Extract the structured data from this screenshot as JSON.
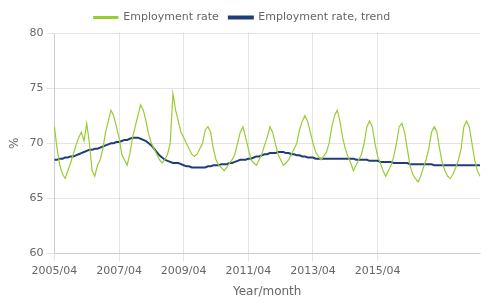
{
  "chart_data": {
    "type": "line",
    "xlabel": "Year/month",
    "ylabel": "%",
    "ylim": [
      60,
      80
    ],
    "yticks": [
      60,
      65,
      70,
      75,
      80
    ],
    "grid": true,
    "legend": "top",
    "categories": [
      "2005/04",
      null,
      null,
      null,
      null,
      null,
      null,
      null,
      null,
      null,
      null,
      null,
      null,
      null,
      null,
      null,
      null,
      null,
      null,
      null,
      null,
      null,
      null,
      null,
      "2007/04",
      null,
      null,
      null,
      null,
      null,
      null,
      null,
      null,
      null,
      null,
      null,
      null,
      null,
      null,
      null,
      null,
      null,
      null,
      null,
      null,
      null,
      null,
      null,
      "2009/04",
      null,
      null,
      null,
      null,
      null,
      null,
      null,
      null,
      null,
      null,
      null,
      null,
      null,
      null,
      null,
      null,
      null,
      null,
      null,
      null,
      null,
      null,
      null,
      "2011/04",
      null,
      null,
      null,
      null,
      null,
      null,
      null,
      null,
      null,
      null,
      null,
      null,
      null,
      null,
      null,
      null,
      null,
      null,
      null,
      null,
      null,
      null,
      null,
      "2013/04",
      null,
      null,
      null,
      null,
      null,
      null,
      null,
      null,
      null,
      null,
      null,
      null,
      null,
      null,
      null,
      null,
      null,
      null,
      null,
      null,
      null,
      null,
      null,
      "2015/04",
      null,
      null,
      null,
      null,
      null,
      null,
      null,
      null,
      null,
      null,
      null,
      null,
      null,
      null,
      null,
      null,
      null,
      null,
      null,
      null,
      null,
      null,
      null,
      null,
      null,
      null,
      null,
      null,
      null,
      null,
      null,
      null,
      null,
      null,
      null,
      null,
      null,
      null
    ],
    "series": [
      {
        "name": "Employment rate",
        "color": "#99cc33",
        "values": [
          71.5,
          69.5,
          68.0,
          67.2,
          66.8,
          67.5,
          68.2,
          69.0,
          69.8,
          70.5,
          71.0,
          70.2,
          71.8,
          70.0,
          67.5,
          67.0,
          68.0,
          68.5,
          69.5,
          71.0,
          72.0,
          73.0,
          72.5,
          71.5,
          70.5,
          69.0,
          68.5,
          68.0,
          69.0,
          70.5,
          71.5,
          72.5,
          73.5,
          73.0,
          72.0,
          70.8,
          70.0,
          69.5,
          69.0,
          68.5,
          68.2,
          68.5,
          69.0,
          70.0,
          74.5,
          73.0,
          72.0,
          71.0,
          70.5,
          70.0,
          69.5,
          69.0,
          68.8,
          69.0,
          69.5,
          70.0,
          71.2,
          71.5,
          71.0,
          69.5,
          68.5,
          68.0,
          67.8,
          67.5,
          67.8,
          68.2,
          68.5,
          69.0,
          70.0,
          71.0,
          71.5,
          70.5,
          69.5,
          68.5,
          68.2,
          68.0,
          68.5,
          69.0,
          69.8,
          70.5,
          71.5,
          71.0,
          70.0,
          69.0,
          68.5,
          68.0,
          68.2,
          68.5,
          69.0,
          69.5,
          70.0,
          71.2,
          72.0,
          72.5,
          72.0,
          71.0,
          70.0,
          69.2,
          68.8,
          68.5,
          68.8,
          69.2,
          70.0,
          71.5,
          72.5,
          73.0,
          72.0,
          70.5,
          69.5,
          68.8,
          68.2,
          67.5,
          68.0,
          68.5,
          69.0,
          70.0,
          71.5,
          72.0,
          71.5,
          70.0,
          68.8,
          68.2,
          67.5,
          67.0,
          67.5,
          68.0,
          68.8,
          70.0,
          71.5,
          71.8,
          71.0,
          69.5,
          68.0,
          67.2,
          66.8,
          66.5,
          67.0,
          67.8,
          68.5,
          69.5,
          71.0,
          71.5,
          71.0,
          69.5,
          68.2,
          67.5,
          67.0,
          66.8,
          67.2,
          67.8,
          68.5,
          69.5,
          71.5,
          72.0,
          71.5,
          70.0,
          68.5,
          67.5,
          67.0
        ]
      },
      {
        "name": "Employment rate, trend",
        "color": "#1f3d7a",
        "values": [
          68.5,
          68.5,
          68.6,
          68.6,
          68.7,
          68.7,
          68.8,
          68.8,
          68.9,
          69.0,
          69.1,
          69.2,
          69.3,
          69.4,
          69.4,
          69.5,
          69.5,
          69.6,
          69.7,
          69.8,
          69.9,
          70.0,
          70.0,
          70.1,
          70.1,
          70.2,
          70.3,
          70.3,
          70.4,
          70.5,
          70.5,
          70.5,
          70.4,
          70.3,
          70.2,
          70.0,
          69.8,
          69.5,
          69.2,
          68.9,
          68.7,
          68.5,
          68.4,
          68.3,
          68.2,
          68.2,
          68.2,
          68.1,
          68.0,
          67.9,
          67.9,
          67.8,
          67.8,
          67.8,
          67.8,
          67.8,
          67.8,
          67.9,
          67.9,
          68.0,
          68.0,
          68.0,
          68.1,
          68.1,
          68.1,
          68.2,
          68.2,
          68.3,
          68.4,
          68.5,
          68.5,
          68.5,
          68.6,
          68.6,
          68.7,
          68.8,
          68.8,
          68.9,
          69.0,
          69.0,
          69.1,
          69.1,
          69.1,
          69.2,
          69.2,
          69.2,
          69.1,
          69.1,
          69.0,
          69.0,
          68.9,
          68.9,
          68.8,
          68.8,
          68.7,
          68.7,
          68.7,
          68.6,
          68.6,
          68.6,
          68.6,
          68.6,
          68.6,
          68.6,
          68.6,
          68.6,
          68.6,
          68.6,
          68.6,
          68.6,
          68.6,
          68.6,
          68.5,
          68.5,
          68.5,
          68.5,
          68.5,
          68.4,
          68.4,
          68.4,
          68.4,
          68.3,
          68.3,
          68.3,
          68.3,
          68.3,
          68.2,
          68.2,
          68.2,
          68.2,
          68.2,
          68.2,
          68.1,
          68.1,
          68.1,
          68.1,
          68.1,
          68.1,
          68.1,
          68.1,
          68.1,
          68.0,
          68.0,
          68.0,
          68.0,
          68.0,
          68.0,
          68.0,
          68.0,
          68.0,
          68.0,
          68.0,
          68.0,
          68.0,
          68.0,
          68.0,
          68.0,
          68.0,
          68.0
        ]
      }
    ]
  }
}
